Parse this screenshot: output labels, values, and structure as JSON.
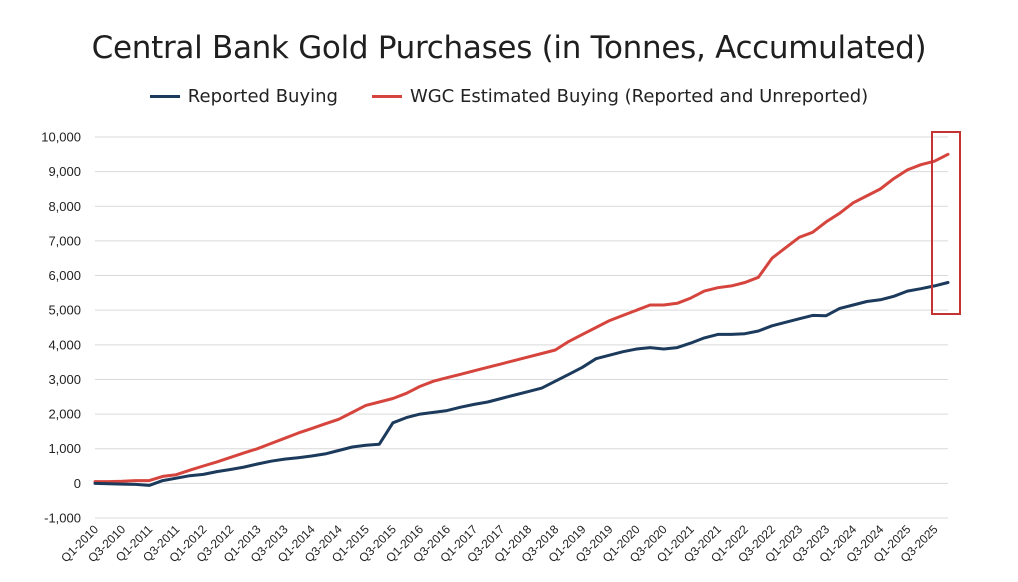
{
  "chart_data": {
    "type": "line",
    "title": "Central Bank Gold Purchases (in Tonnes, Accumulated)",
    "xlabel": "",
    "ylabel": "",
    "ylim": [
      -1000,
      10000
    ],
    "yticks": [
      -1000,
      0,
      1000,
      2000,
      3000,
      4000,
      5000,
      6000,
      7000,
      8000,
      9000,
      10000
    ],
    "ytick_labels": [
      "-1,000",
      "0",
      "1,000",
      "2,000",
      "3,000",
      "4,000",
      "5,000",
      "6,000",
      "7,000",
      "8,000",
      "9,000",
      "10,000"
    ],
    "grid": "horizontal",
    "legend_position": "top-center",
    "x_labels": [
      "Q1-2010",
      "Q3-2010",
      "Q1-2011",
      "Q3-2011",
      "Q1-2012",
      "Q3-2012",
      "Q1-2013",
      "Q3-2013",
      "Q1-2014",
      "Q3-2014",
      "Q1-2015",
      "Q3-2015",
      "Q1-2016",
      "Q3-2016",
      "Q1-2017",
      "Q3-2017",
      "Q1-2018",
      "Q3-2018",
      "Q1-2019",
      "Q3-2019",
      "Q1-2020",
      "Q3-2020",
      "Q1-2021",
      "Q3-2021",
      "Q1-2022",
      "Q3-2022",
      "Q1-2023",
      "Q3-2023",
      "Q1-2024",
      "Q3-2024",
      "Q1-2025",
      "Q3-2025"
    ],
    "series": [
      {
        "name": "Reported Buying",
        "color": "#1b3a5c",
        "values": [
          0,
          -10,
          -20,
          -30,
          -60,
          80,
          150,
          220,
          260,
          340,
          400,
          470,
          560,
          640,
          700,
          740,
          790,
          850,
          950,
          1050,
          1100,
          1130,
          1750,
          1900,
          2000,
          2050,
          2100,
          2200,
          2280,
          2350,
          2450,
          2550,
          2650,
          2750,
          2950,
          3150,
          3350,
          3600,
          3700,
          3800,
          3880,
          3920,
          3880,
          3920,
          4050,
          4200,
          4300,
          4300,
          4320,
          4400,
          4550,
          4650,
          4750,
          4850,
          4840,
          5050,
          5150,
          5250,
          5300,
          5400,
          5550,
          5620,
          5700,
          5800
        ]
      },
      {
        "name": "WGC Estimated Buying (Reported and Unreported)",
        "color": "#d6453d",
        "values": [
          50,
          50,
          60,
          80,
          80,
          200,
          250,
          380,
          500,
          620,
          750,
          880,
          1000,
          1150,
          1300,
          1450,
          1580,
          1720,
          1850,
          2050,
          2250,
          2350,
          2450,
          2600,
          2800,
          2950,
          3050,
          3150,
          3250,
          3350,
          3450,
          3550,
          3650,
          3750,
          3850,
          4100,
          4300,
          4500,
          4700,
          4850,
          5000,
          5150,
          5150,
          5200,
          5350,
          5550,
          5650,
          5700,
          5800,
          5950,
          6500,
          6800,
          7100,
          7250,
          7550,
          7800,
          8100,
          8300,
          8500,
          8800,
          9050,
          9200,
          9300,
          9500
        ]
      }
    ],
    "annotation": {
      "type": "highlight-box",
      "color": "#c43232",
      "note": "box around final values"
    }
  },
  "legend": {
    "items": [
      {
        "label": "Reported Buying",
        "color": "#1b3a5c"
      },
      {
        "label": "WGC Estimated Buying (Reported and Unreported)",
        "color": "#d6453d"
      }
    ]
  }
}
